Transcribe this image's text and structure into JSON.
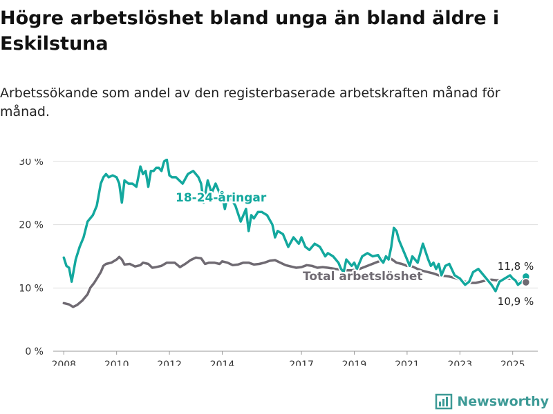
{
  "header": {
    "title": "Högre arbetslöshet bland unga än bland äldre i Eskilstuna",
    "subtitle": "Arbetssökande som andel av den registerbaserade arbetskraften månad för månad."
  },
  "brand": {
    "name": "Newsworthy",
    "icon": "bar-chart-logo-icon",
    "color": "#3d9a96"
  },
  "chart_data": {
    "type": "line",
    "title": "",
    "xlabel": "",
    "ylabel": "",
    "xlim": [
      2007.6,
      2025.95
    ],
    "ylim": [
      0,
      30
    ],
    "yticks": [
      0,
      10,
      20,
      30
    ],
    "ytick_labels": [
      "0 %",
      "10 %",
      "20 %",
      "30 %"
    ],
    "xticks": [
      2008,
      2010,
      2012,
      2014,
      2017,
      2019,
      2021,
      2023,
      2025
    ],
    "xtick_labels": [
      "2008",
      "2010",
      "2012",
      "2014",
      "2017",
      "2019",
      "2021",
      "2023",
      "2025"
    ],
    "grid": "horizontal",
    "legend": "direct labels on lines",
    "series": [
      {
        "name": "18-24-åringar",
        "color": "#13a89e",
        "x": [
          2008.0,
          2008.1,
          2008.2,
          2008.3,
          2008.45,
          2008.6,
          2008.75,
          2008.9,
          2009.0,
          2009.1,
          2009.25,
          2009.4,
          2009.5,
          2009.6,
          2009.7,
          2009.85,
          2010.0,
          2010.1,
          2010.2,
          2010.3,
          2010.45,
          2010.6,
          2010.75,
          2010.9,
          2011.0,
          2011.1,
          2011.2,
          2011.3,
          2011.4,
          2011.5,
          2011.6,
          2011.7,
          2011.8,
          2011.9,
          2012.0,
          2012.1,
          2012.25,
          2012.5,
          2012.7,
          2012.9,
          2013.0,
          2013.1,
          2013.2,
          2013.3,
          2013.45,
          2013.6,
          2013.75,
          2013.9,
          2014.0,
          2014.1,
          2014.2,
          2014.35,
          2014.5,
          2014.7,
          2014.9,
          2015.0,
          2015.1,
          2015.2,
          2015.35,
          2015.5,
          2015.7,
          2015.9,
          2016.0,
          2016.1,
          2016.3,
          2016.5,
          2016.7,
          2016.9,
          2017.0,
          2017.15,
          2017.3,
          2017.5,
          2017.7,
          2017.9,
          2018.0,
          2018.2,
          2018.4,
          2018.5,
          2018.6,
          2018.7,
          2018.8,
          2018.9,
          2019.0,
          2019.1,
          2019.3,
          2019.5,
          2019.7,
          2019.9,
          2020.0,
          2020.1,
          2020.2,
          2020.3,
          2020.4,
          2020.5,
          2020.6,
          2020.7,
          2020.9,
          2021.0,
          2021.1,
          2021.2,
          2021.3,
          2021.4,
          2021.5,
          2021.6,
          2021.8,
          2021.9,
          2022.0,
          2022.1,
          2022.2,
          2022.3,
          2022.45,
          2022.6,
          2022.8,
          2023.0,
          2023.1,
          2023.2,
          2023.35,
          2023.5,
          2023.7,
          2023.9,
          2024.0,
          2024.1,
          2024.2,
          2024.35,
          2024.5,
          2024.7,
          2024.9,
          2025.0,
          2025.1,
          2025.2,
          2025.35,
          2025.5
        ],
        "values": [
          14.8,
          13.5,
          13.2,
          11.0,
          14.5,
          16.5,
          18.0,
          20.5,
          21.0,
          21.5,
          23.0,
          26.5,
          27.5,
          28.0,
          27.5,
          27.8,
          27.5,
          26.5,
          23.5,
          27.0,
          26.5,
          26.5,
          26.0,
          29.2,
          28.0,
          28.5,
          26.0,
          28.5,
          28.5,
          29.0,
          29.0,
          28.5,
          30.0,
          30.3,
          27.8,
          27.5,
          27.5,
          26.5,
          28.0,
          28.5,
          28.0,
          27.5,
          26.5,
          23.5,
          27.0,
          25.0,
          26.5,
          25.0,
          24.5,
          22.5,
          24.5,
          24.0,
          23.0,
          20.5,
          22.5,
          19.0,
          21.5,
          21.0,
          22.0,
          22.0,
          21.5,
          20.0,
          18.0,
          19.0,
          18.5,
          16.5,
          18.0,
          17.0,
          18.0,
          16.5,
          16.0,
          17.0,
          16.5,
          15.0,
          15.5,
          15.0,
          14.0,
          13.0,
          12.5,
          14.5,
          14.0,
          13.5,
          14.0,
          13.0,
          15.0,
          15.5,
          15.0,
          15.2,
          14.5,
          14.0,
          15.0,
          14.5,
          16.5,
          19.5,
          19.0,
          17.5,
          15.5,
          14.5,
          13.5,
          15.0,
          14.5,
          14.0,
          15.5,
          17.0,
          14.5,
          13.5,
          14.0,
          13.0,
          13.8,
          12.0,
          13.5,
          13.8,
          12.0,
          11.5,
          11.0,
          10.5,
          11.0,
          12.5,
          13.0,
          12.0,
          11.5,
          11.0,
          10.5,
          9.5,
          11.0,
          11.5,
          12.0,
          11.5,
          11.2,
          10.5,
          11.0,
          11.8
        ]
      },
      {
        "name": "Total arbetslöshet",
        "color": "#6f6a72",
        "x": [
          2008.0,
          2008.2,
          2008.35,
          2008.5,
          2008.7,
          2008.9,
          2009.0,
          2009.15,
          2009.3,
          2009.4,
          2009.5,
          2009.6,
          2009.8,
          2010.0,
          2010.1,
          2010.2,
          2010.3,
          2010.5,
          2010.7,
          2010.9,
          2011.0,
          2011.2,
          2011.35,
          2011.5,
          2011.7,
          2011.9,
          2012.0,
          2012.2,
          2012.4,
          2012.6,
          2012.8,
          2013.0,
          2013.2,
          2013.35,
          2013.5,
          2013.7,
          2013.9,
          2014.0,
          2014.2,
          2014.4,
          2014.6,
          2014.8,
          2015.0,
          2015.2,
          2015.4,
          2015.6,
          2015.8,
          2016.0,
          2016.2,
          2016.4,
          2016.6,
          2016.8,
          2017.0,
          2017.2,
          2017.4,
          2017.6,
          2017.8,
          2018.0,
          2018.3,
          2018.6,
          2018.9,
          2019.2,
          2019.5,
          2019.8,
          2020.0,
          2020.2,
          2020.4,
          2020.6,
          2020.8,
          2021.0,
          2021.2,
          2021.4,
          2021.6,
          2021.8,
          2022.0,
          2022.2,
          2022.4,
          2022.6,
          2022.8,
          2023.0,
          2023.2,
          2023.4,
          2023.6,
          2023.8,
          2024.0,
          2024.2,
          2024.4,
          2024.6,
          2024.8,
          2025.0,
          2025.2,
          2025.35,
          2025.5
        ],
        "values": [
          7.6,
          7.4,
          7.0,
          7.3,
          8.0,
          9.0,
          10.0,
          10.8,
          11.8,
          12.5,
          13.5,
          13.8,
          14.0,
          14.5,
          14.9,
          14.5,
          13.7,
          13.8,
          13.4,
          13.6,
          14.0,
          13.8,
          13.2,
          13.3,
          13.5,
          14.0,
          14.0,
          14.0,
          13.3,
          13.8,
          14.4,
          14.8,
          14.7,
          13.8,
          14.0,
          14.0,
          13.8,
          14.2,
          14.0,
          13.6,
          13.7,
          14.0,
          14.0,
          13.7,
          13.8,
          14.0,
          14.3,
          14.4,
          14.0,
          13.6,
          13.4,
          13.2,
          13.3,
          13.6,
          13.5,
          13.2,
          13.3,
          13.2,
          13.0,
          12.8,
          12.8,
          13.0,
          13.5,
          14.0,
          14.3,
          15.0,
          14.6,
          14.0,
          13.8,
          13.5,
          13.4,
          13.0,
          12.7,
          12.5,
          12.3,
          12.0,
          11.9,
          11.8,
          11.6,
          11.3,
          11.0,
          10.8,
          10.8,
          11.0,
          11.2,
          11.3,
          11.2,
          11.3,
          11.5,
          11.4,
          11.0,
          10.9,
          10.9
        ]
      }
    ],
    "annotations": [
      {
        "series": "18-24-åringar",
        "text": "18-24-åringar"
      },
      {
        "series": "Total arbetslöshet",
        "text": "Total arbetslöshet"
      },
      {
        "series": "18-24-åringar",
        "text": "11,8 %",
        "x": 2025.5,
        "y": 11.8
      },
      {
        "series": "Total arbetslöshet",
        "text": "10,9 %",
        "x": 2025.5,
        "y": 10.9
      }
    ]
  }
}
